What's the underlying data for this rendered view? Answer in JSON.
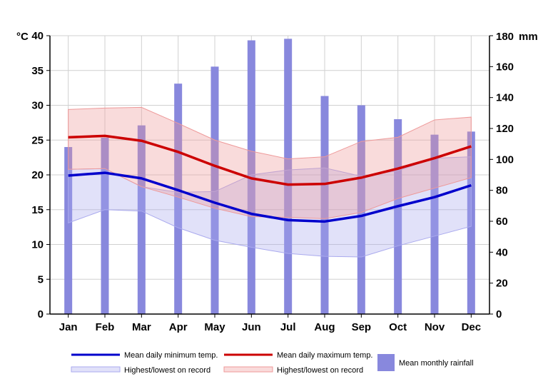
{
  "chart_data": {
    "type": "climate",
    "categories": [
      "Jan",
      "Feb",
      "Mar",
      "Apr",
      "May",
      "Jun",
      "Jul",
      "Aug",
      "Sep",
      "Oct",
      "Nov",
      "Dec"
    ],
    "left_axis": {
      "unit": "°C",
      "range": [
        0,
        40
      ],
      "ticks": [
        0,
        5,
        10,
        15,
        20,
        25,
        30,
        35,
        40
      ]
    },
    "right_axis": {
      "unit": "mm",
      "range": [
        0,
        180
      ],
      "ticks": [
        0,
        20,
        40,
        60,
        80,
        100,
        120,
        140,
        160,
        180
      ]
    },
    "grid": true,
    "series": [
      {
        "name": "Mean daily minimum temp.",
        "kind": "line",
        "color": "#0000cc",
        "axis": "left",
        "values": [
          19.9,
          20.3,
          19.5,
          17.8,
          16.0,
          14.4,
          13.5,
          13.3,
          14.1,
          15.5,
          16.8,
          18.5
        ]
      },
      {
        "name": "Mean daily maximum temp.",
        "kind": "line",
        "color": "#cc0000",
        "axis": "left",
        "values": [
          25.4,
          25.6,
          24.9,
          23.3,
          21.3,
          19.5,
          18.6,
          18.7,
          19.6,
          20.9,
          22.4,
          24.1
        ]
      },
      {
        "name": "Highest/lowest on record",
        "kind": "band",
        "color": "#aaaaee",
        "axis": "left",
        "low": [
          13.1,
          15.0,
          14.8,
          12.4,
          10.6,
          9.6,
          8.7,
          8.3,
          8.2,
          9.8,
          11.2,
          12.6
        ],
        "high": [
          20.8,
          20.9,
          18.3,
          17.5,
          17.6,
          20.0,
          20.7,
          21.0,
          19.8,
          20.6,
          22.4,
          22.6
        ]
      },
      {
        "name": "Highest/lowest on record",
        "kind": "band",
        "color": "#ee9999",
        "axis": "left",
        "low": [
          20.8,
          20.9,
          18.3,
          16.8,
          15.2,
          14.0,
          13.9,
          13.7,
          14.6,
          16.6,
          18.1,
          19.6
        ],
        "high": [
          29.4,
          29.6,
          29.7,
          27.4,
          25.0,
          23.4,
          22.3,
          22.6,
          24.8,
          25.4,
          27.9,
          28.3
        ]
      },
      {
        "name": "Mean monthly rainfall",
        "kind": "bar",
        "color": "#8888dd",
        "axis": "right",
        "values": [
          108,
          114,
          122,
          149,
          160,
          177,
          178,
          141,
          135,
          126,
          116,
          118
        ]
      }
    ]
  }
}
